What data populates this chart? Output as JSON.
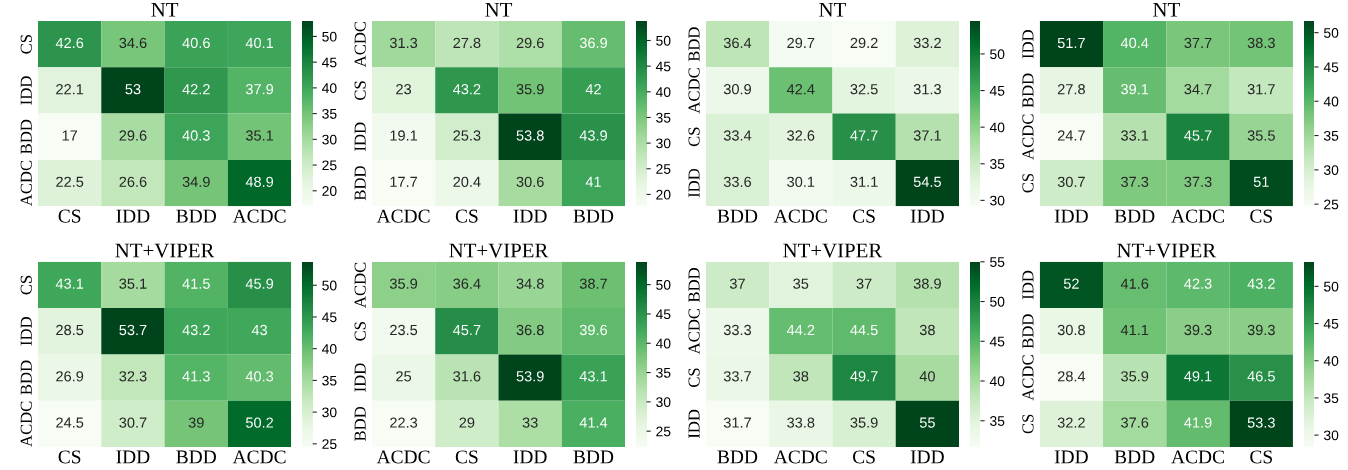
{
  "chart_data": [
    {
      "type": "heatmap",
      "title": "NT",
      "categories": [
        "CS",
        "IDD",
        "BDD",
        "ACDC"
      ],
      "y_categories": [
        "CS",
        "IDD",
        "BDD",
        "ACDC"
      ],
      "cells": [
        [
          42.6,
          34.6,
          40.6,
          40.1
        ],
        [
          22.1,
          53,
          42.2,
          37.9
        ],
        [
          17,
          29.6,
          40.3,
          35.1
        ],
        [
          22.5,
          26.6,
          34.9,
          48.9
        ]
      ],
      "clim": [
        17,
        53
      ],
      "cticks": [
        20,
        25,
        30,
        35,
        40,
        45,
        50
      ],
      "data_labels": true
    },
    {
      "type": "heatmap",
      "title": "NT",
      "categories": [
        "ACDC",
        "CS",
        "IDD",
        "BDD"
      ],
      "y_categories": [
        "ACDC",
        "CS",
        "IDD",
        "BDD"
      ],
      "cells": [
        [
          31.3,
          27.8,
          29.6,
          36.9
        ],
        [
          23,
          43.2,
          35.9,
          42
        ],
        [
          19.1,
          25.3,
          53.8,
          43.9
        ],
        [
          17.7,
          20.4,
          30.6,
          41
        ]
      ],
      "clim": [
        17.7,
        53.8
      ],
      "cticks": [
        20,
        25,
        30,
        35,
        40,
        45,
        50
      ],
      "data_labels": true
    },
    {
      "type": "heatmap",
      "title": "NT",
      "categories": [
        "BDD",
        "ACDC",
        "CS",
        "IDD"
      ],
      "y_categories": [
        "BDD",
        "ACDC",
        "CS",
        "IDD"
      ],
      "cells": [
        [
          36.4,
          29.7,
          29.2,
          33.2
        ],
        [
          30.9,
          42.4,
          32.5,
          31.3
        ],
        [
          33.4,
          32.6,
          47.7,
          37.1
        ],
        [
          33.6,
          30.1,
          31.1,
          54.5
        ]
      ],
      "clim": [
        29.2,
        54.5
      ],
      "cticks": [
        30,
        35,
        40,
        45,
        50
      ],
      "data_labels": true
    },
    {
      "type": "heatmap",
      "title": "NT",
      "categories": [
        "IDD",
        "BDD",
        "ACDC",
        "CS"
      ],
      "y_categories": [
        "IDD",
        "BDD",
        "ACDC",
        "CS"
      ],
      "cells": [
        [
          51.7,
          40.4,
          37.7,
          38.3
        ],
        [
          27.8,
          39.1,
          34.7,
          31.7
        ],
        [
          24.7,
          33.1,
          45.7,
          35.5
        ],
        [
          30.7,
          37.3,
          37.3,
          51
        ]
      ],
      "clim": [
        24.7,
        51.7
      ],
      "cticks": [
        25,
        30,
        35,
        40,
        45,
        50
      ],
      "data_labels": true
    },
    {
      "type": "heatmap",
      "title": "NT+VIPER",
      "categories": [
        "CS",
        "IDD",
        "BDD",
        "ACDC"
      ],
      "y_categories": [
        "CS",
        "IDD",
        "BDD",
        "ACDC"
      ],
      "cells": [
        [
          43.1,
          35.1,
          41.5,
          45.9
        ],
        [
          28.5,
          53.7,
          43.2,
          43
        ],
        [
          26.9,
          32.3,
          41.3,
          40.3
        ],
        [
          24.5,
          30.7,
          39,
          50.2
        ]
      ],
      "clim": [
        24.5,
        53.7
      ],
      "cticks": [
        25,
        30,
        35,
        40,
        45,
        50
      ],
      "data_labels": true
    },
    {
      "type": "heatmap",
      "title": "NT+VIPER",
      "categories": [
        "ACDC",
        "CS",
        "IDD",
        "BDD"
      ],
      "y_categories": [
        "ACDC",
        "CS",
        "IDD",
        "BDD"
      ],
      "cells": [
        [
          35.9,
          36.4,
          34.8,
          38.7
        ],
        [
          23.5,
          45.7,
          36.8,
          39.6
        ],
        [
          25,
          31.6,
          53.9,
          43.1
        ],
        [
          22.3,
          29,
          33,
          41.4
        ]
      ],
      "clim": [
        22.3,
        53.9
      ],
      "cticks": [
        25,
        30,
        35,
        40,
        45,
        50
      ],
      "data_labels": true
    },
    {
      "type": "heatmap",
      "title": "NT+VIPER",
      "categories": [
        "BDD",
        "ACDC",
        "CS",
        "IDD"
      ],
      "y_categories": [
        "BDD",
        "ACDC",
        "CS",
        "IDD"
      ],
      "cells": [
        [
          37,
          35,
          37,
          38.9
        ],
        [
          33.3,
          44.2,
          44.5,
          38
        ],
        [
          33.7,
          38,
          49.7,
          40
        ],
        [
          31.7,
          33.8,
          35.9,
          55
        ]
      ],
      "clim": [
        31.7,
        55
      ],
      "cticks": [
        35,
        40,
        45,
        50,
        55
      ],
      "data_labels": true
    },
    {
      "type": "heatmap",
      "title": "NT+VIPER",
      "categories": [
        "IDD",
        "BDD",
        "ACDC",
        "CS"
      ],
      "y_categories": [
        "IDD",
        "BDD",
        "ACDC",
        "CS"
      ],
      "cells": [
        [
          52,
          41.6,
          42.3,
          43.2
        ],
        [
          30.8,
          41.1,
          39.3,
          39.3
        ],
        [
          28.4,
          35.9,
          49.1,
          46.5
        ],
        [
          32.2,
          37.6,
          41.9,
          53.3
        ]
      ],
      "clim": [
        28.4,
        53.3
      ],
      "cticks": [
        30,
        35,
        40,
        45,
        50
      ],
      "data_labels": true
    }
  ]
}
